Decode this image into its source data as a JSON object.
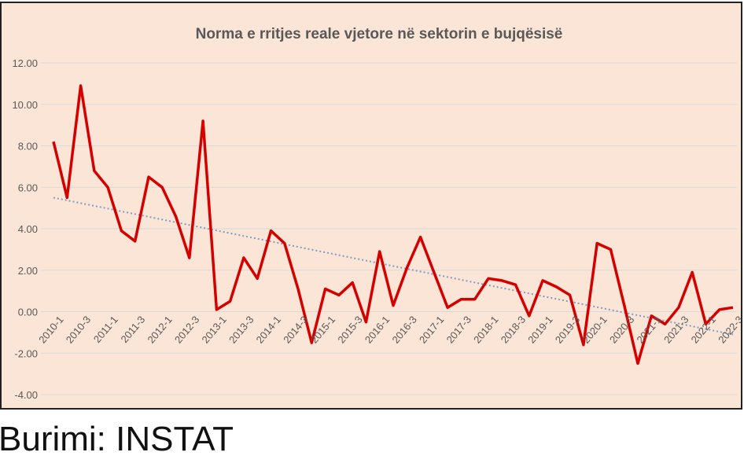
{
  "source_note": "Burimi: INSTAT",
  "colors": {
    "background": "#fbe5d6",
    "series": "#d40000",
    "trend": "#7f9cc8",
    "grid": "#d9d9d9",
    "text": "#595959"
  },
  "chart_data": {
    "type": "line",
    "title": "Norma e rritjes reale vjetore në sektorin e bujqësisë",
    "xlabel": "",
    "ylabel": "",
    "ylim": [
      -4,
      12
    ],
    "yticks": [
      "12.00",
      "10.00",
      "8.00",
      "6.00",
      "4.00",
      "2.00",
      "0.00",
      "-2.00",
      "-4.00"
    ],
    "x": [
      "2010-1",
      "2010-2",
      "2010-3",
      "2010-4",
      "2011-1",
      "2011-2",
      "2011-3",
      "2011-4",
      "2012-1",
      "2012-2",
      "2012-3",
      "2012-4",
      "2013-1",
      "2013-2",
      "2013-3",
      "2013-4",
      "2014-1",
      "2014-2",
      "2014-3",
      "2014-4",
      "2015-1",
      "2015-2",
      "2015-3",
      "2015-4",
      "2016-1",
      "2016-2",
      "2016-3",
      "2016-4",
      "2017-1",
      "2017-2",
      "2017-3",
      "2017-4",
      "2018-1",
      "2018-2",
      "2018-3",
      "2018-4",
      "2019-1",
      "2019-2",
      "2019-3",
      "2019-4",
      "2020-1",
      "2020-2",
      "2020-3",
      "2020-4",
      "2021-1",
      "2021-2",
      "2021-3",
      "2021-4",
      "2022-1",
      "2022-2",
      "2022-3"
    ],
    "xtick_labels": [
      "2010-1",
      "2010-3",
      "2011-1",
      "2011-3",
      "2012-1",
      "2012-3",
      "2013-1",
      "2013-3",
      "2014-1",
      "2014-3",
      "2015-1",
      "2015-3",
      "2016-1",
      "2016-3",
      "2017-1",
      "2017-3",
      "2018-1",
      "2018-3",
      "2019-1",
      "2019-3",
      "2020-1",
      "2020-3",
      "2021-1",
      "2021-3",
      "2022-1",
      "2022-3"
    ],
    "series": [
      {
        "values": [
          8.2,
          5.5,
          10.9,
          6.8,
          6.0,
          3.9,
          3.4,
          6.5,
          6.0,
          4.6,
          2.6,
          9.2,
          0.1,
          0.5,
          2.6,
          1.6,
          3.9,
          3.3,
          1.1,
          -1.5,
          1.1,
          0.8,
          1.4,
          -0.5,
          2.9,
          0.3,
          2.1,
          3.6,
          1.9,
          0.2,
          0.6,
          0.6,
          1.6,
          1.5,
          1.3,
          -0.2,
          1.5,
          1.2,
          0.8,
          -1.6,
          3.3,
          3.0,
          0.3,
          -2.5,
          -0.2,
          -0.6,
          0.2,
          1.9,
          -0.6,
          0.1,
          0.2
        ]
      }
    ],
    "trendline": {
      "start": 5.5,
      "end": -1.1,
      "style": "dotted"
    },
    "grid": true,
    "legend": "none"
  }
}
